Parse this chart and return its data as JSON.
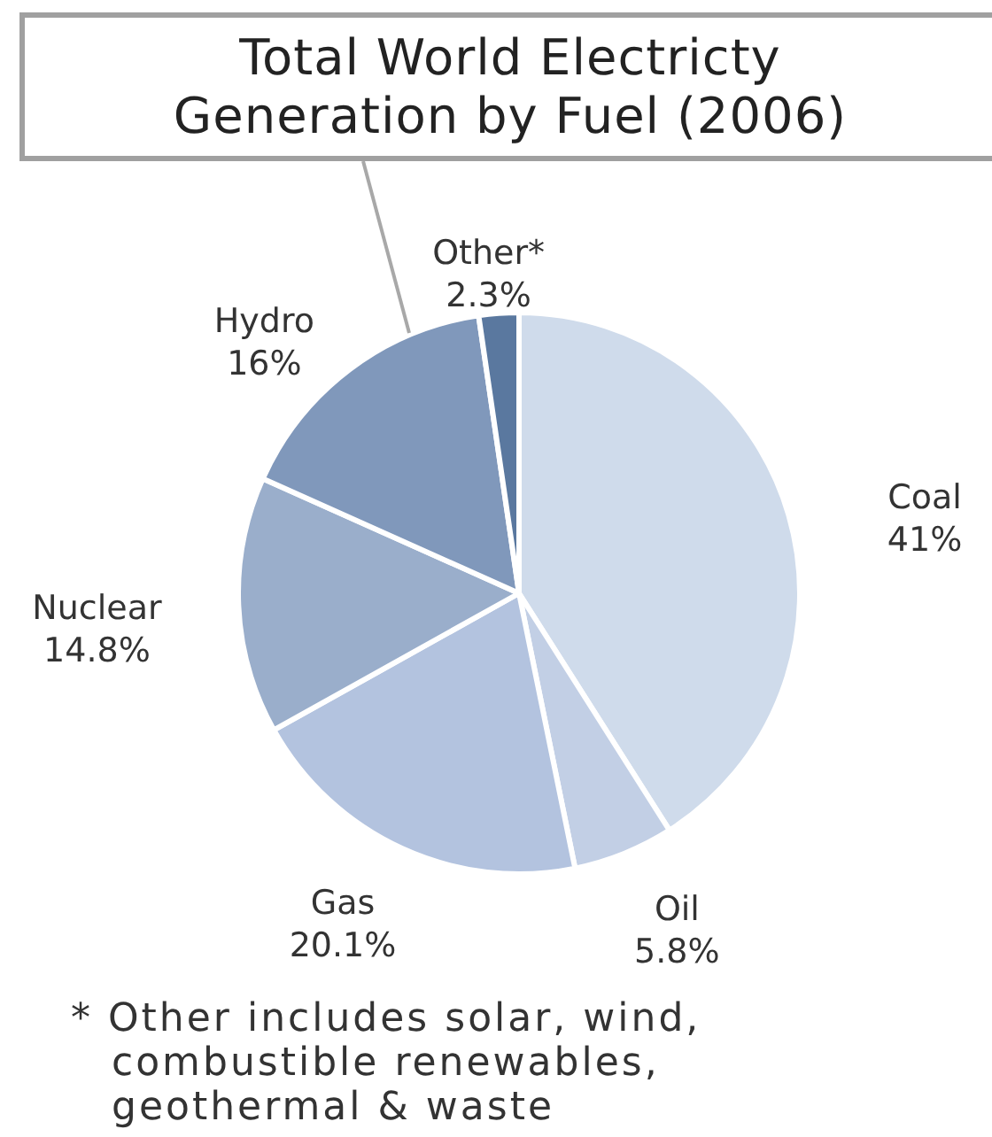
{
  "chart_data": {
    "type": "pie",
    "title": "Total World Electricty Generation by Fuel (2006)",
    "categories": [
      "Coal",
      "Oil",
      "Gas",
      "Nuclear",
      "Hydro",
      "Other*"
    ],
    "values": [
      41,
      5.8,
      20.1,
      14.8,
      16,
      2.3
    ],
    "value_labels": [
      "41%",
      "5.8%",
      "20.1%",
      "14.8%",
      "16%",
      "2.3%"
    ],
    "colors": [
      "#cfdbeb",
      "#c2cfe5",
      "#b3c3df",
      "#9aaecb",
      "#8098bb",
      "#5a789f"
    ],
    "annotations": [
      "* Other includes solar, wind, combustible renewables, geothermal & waste"
    ]
  }
}
